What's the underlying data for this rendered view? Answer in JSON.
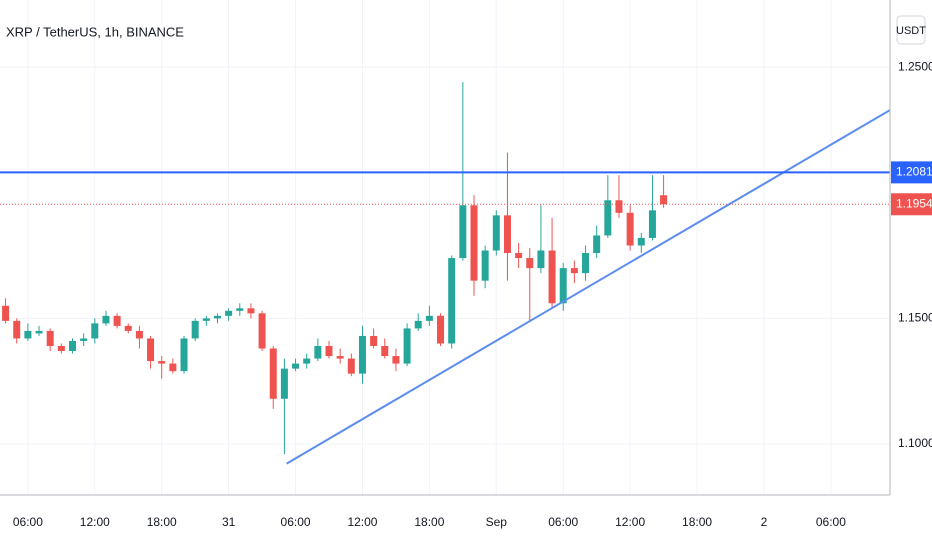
{
  "chart_data": {
    "type": "candlestick",
    "title": "XRP / TetherUS, 1h, BINANCE",
    "currency_button": "USDT",
    "xlim": [
      3.5,
      83.3
    ],
    "xticks": [
      {
        "value": 6,
        "label": "06:00"
      },
      {
        "value": 12,
        "label": "12:00"
      },
      {
        "value": 18,
        "label": "18:00"
      },
      {
        "value": 24,
        "label": "31"
      },
      {
        "value": 30,
        "label": "06:00"
      },
      {
        "value": 36,
        "label": "12:00"
      },
      {
        "value": 42,
        "label": "18:00"
      },
      {
        "value": 48,
        "label": "Sep"
      },
      {
        "value": 54,
        "label": "06:00"
      },
      {
        "value": 60,
        "label": "12:00"
      },
      {
        "value": 66,
        "label": "18:00"
      },
      {
        "value": 72,
        "label": "2"
      },
      {
        "value": 78,
        "label": "06:00"
      }
    ],
    "ylim": [
      1.0797,
      1.2767
    ],
    "yticks": [
      {
        "value": 1.25,
        "label": "1.2500"
      },
      {
        "value": 1.15,
        "label": "1.1500"
      },
      {
        "value": 1.1,
        "label": "1.1000"
      }
    ],
    "grid": true,
    "up_color": "#26a69a",
    "down_color": "#ef5350",
    "x": [
      4,
      5,
      6,
      7,
      8,
      9,
      10,
      11,
      12,
      13,
      14,
      15,
      16,
      17,
      18,
      19,
      20,
      21,
      22,
      23,
      24,
      25,
      26,
      27,
      28,
      29,
      30,
      31,
      32,
      33,
      34,
      35,
      36,
      37,
      38,
      39,
      40,
      41,
      42,
      43,
      44,
      45,
      46,
      47,
      48,
      49,
      50,
      51,
      52,
      53,
      54,
      55,
      56,
      57,
      58,
      59,
      60,
      61,
      62,
      63
    ],
    "open": [
      1.155,
      1.149,
      1.142,
      1.144,
      1.145,
      1.139,
      1.137,
      1.141,
      1.142,
      1.148,
      1.151,
      1.147,
      1.145,
      1.142,
      1.133,
      1.132,
      1.129,
      1.142,
      1.149,
      1.15,
      1.151,
      1.153,
      1.154,
      1.152,
      1.138,
      1.118,
      1.13,
      1.132,
      1.134,
      1.139,
      1.135,
      1.134,
      1.128,
      1.143,
      1.139,
      1.135,
      1.132,
      1.146,
      1.149,
      1.151,
      1.14,
      1.174,
      1.195,
      1.165,
      1.177,
      1.191,
      1.176,
      1.174,
      1.17,
      1.177,
      1.156,
      1.17,
      1.168,
      1.176,
      1.183,
      1.197,
      1.192,
      1.179,
      1.182,
      1.199
    ],
    "high": [
      1.158,
      1.15,
      1.148,
      1.147,
      1.146,
      1.14,
      1.142,
      1.144,
      1.15,
      1.153,
      1.152,
      1.148,
      1.147,
      1.143,
      1.135,
      1.134,
      1.143,
      1.15,
      1.151,
      1.152,
      1.154,
      1.156,
      1.156,
      1.153,
      1.139,
      1.134,
      1.134,
      1.136,
      1.142,
      1.141,
      1.138,
      1.136,
      1.147,
      1.146,
      1.142,
      1.138,
      1.148,
      1.152,
      1.155,
      1.152,
      1.175,
      1.244,
      1.199,
      1.179,
      1.193,
      1.216,
      1.18,
      1.178,
      1.195,
      1.19,
      1.172,
      1.173,
      1.179,
      1.187,
      1.207,
      1.207,
      1.195,
      1.184,
      1.207,
      1.207
    ],
    "low": [
      1.148,
      1.14,
      1.141,
      1.143,
      1.137,
      1.136,
      1.136,
      1.139,
      1.14,
      1.147,
      1.146,
      1.144,
      1.138,
      1.13,
      1.126,
      1.128,
      1.128,
      1.141,
      1.147,
      1.148,
      1.149,
      1.151,
      1.15,
      1.137,
      1.114,
      1.096,
      1.129,
      1.13,
      1.133,
      1.134,
      1.132,
      1.127,
      1.124,
      1.138,
      1.134,
      1.129,
      1.131,
      1.145,
      1.147,
      1.139,
      1.138,
      1.173,
      1.159,
      1.162,
      1.175,
      1.165,
      1.17,
      1.149,
      1.168,
      1.154,
      1.153,
      1.164,
      1.165,
      1.174,
      1.182,
      1.19,
      1.177,
      1.176,
      1.181,
      1.194
    ],
    "close": [
      1.149,
      1.142,
      1.145,
      1.145,
      1.139,
      1.137,
      1.141,
      1.142,
      1.148,
      1.151,
      1.147,
      1.145,
      1.142,
      1.133,
      1.132,
      1.129,
      1.142,
      1.149,
      1.15,
      1.151,
      1.153,
      1.154,
      1.152,
      1.138,
      1.118,
      1.13,
      1.132,
      1.134,
      1.139,
      1.135,
      1.134,
      1.128,
      1.143,
      1.139,
      1.135,
      1.132,
      1.146,
      1.149,
      1.151,
      1.14,
      1.174,
      1.195,
      1.165,
      1.177,
      1.191,
      1.176,
      1.174,
      1.17,
      1.177,
      1.156,
      1.17,
      1.168,
      1.176,
      1.183,
      1.197,
      1.192,
      1.179,
      1.182,
      1.193,
      1.1954
    ],
    "hline": {
      "value": 1.2081,
      "color": "#2962ff"
    },
    "last_price": {
      "value": 1.1954,
      "color": "#ef5350"
    },
    "trendline": {
      "x": [
        29.2,
        83.3
      ],
      "y": [
        1.0922,
        1.2329
      ],
      "color": "#5b8def"
    }
  }
}
